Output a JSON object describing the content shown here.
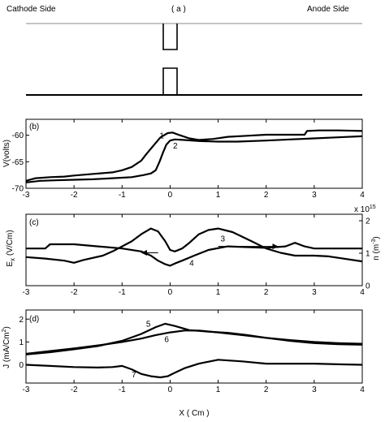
{
  "schematic": {
    "panel_label": "( a )",
    "left_label": "Cathode Side",
    "right_label": "Anode Side"
  },
  "xaxis_label": "X ( Cm )",
  "chart_data": [
    {
      "type": "line",
      "panel_label": "(b)",
      "ylabel": "V(volts)",
      "xlim": [
        -3,
        4
      ],
      "ylim": [
        -70,
        -57
      ],
      "xticks": [
        "-3",
        "-2",
        "-1",
        "0",
        "1",
        "2",
        "3",
        "4"
      ],
      "yticks": [
        -60,
        -65,
        -70
      ],
      "yticklabels": [
        "-60",
        "-65",
        "-70"
      ],
      "annotations": [
        {
          "text": "1",
          "x": -0.22,
          "y": -60.6
        },
        {
          "text": "2",
          "x": 0.06,
          "y": -62.5
        }
      ],
      "series": [
        {
          "label": "1",
          "x": [
            -3,
            -2.8,
            -2.5,
            -2.2,
            -2,
            -1.6,
            -1.2,
            -1,
            -0.8,
            -0.6,
            -0.5,
            -0.35,
            -0.2,
            -0.05,
            0.05,
            0.2,
            0.4,
            0.6,
            0.9,
            1.2,
            1.6,
            2,
            2.4,
            2.8,
            2.85,
            3.1,
            3.5,
            4
          ],
          "y": [
            -68.6,
            -68.1,
            -67.9,
            -67.8,
            -67.6,
            -67.3,
            -67.0,
            -66.6,
            -66.0,
            -64.8,
            -63.6,
            -62.0,
            -60.4,
            -59.6,
            -59.5,
            -60.0,
            -60.6,
            -60.9,
            -60.7,
            -60.3,
            -60.1,
            -59.9,
            -59.9,
            -59.9,
            -59.2,
            -59.1,
            -59.1,
            -59.2
          ]
        },
        {
          "label": "2",
          "x": [
            -3,
            -2.7,
            -2.4,
            -2,
            -1.6,
            -1.2,
            -0.8,
            -0.55,
            -0.4,
            -0.3,
            -0.22,
            -0.15,
            -0.08,
            0,
            0.1,
            0.3,
            0.6,
            1,
            1.4,
            2,
            2.5,
            3,
            3.5,
            4
          ],
          "y": [
            -68.9,
            -68.6,
            -68.5,
            -68.4,
            -68.3,
            -68.1,
            -67.9,
            -67.5,
            -67.2,
            -66.6,
            -65.0,
            -63.3,
            -61.8,
            -61.0,
            -60.8,
            -60.9,
            -61.1,
            -61.2,
            -61.2,
            -61.0,
            -60.8,
            -60.6,
            -60.4,
            -60.2
          ]
        }
      ]
    },
    {
      "type": "line",
      "panel_label": "(c)",
      "ylabel": "E_x (V/Cm)",
      "ylabel_main": "E",
      "ylabel_sub": "x",
      "ylabel_rest": "(V/Cm)",
      "y2label": "n (m⁻³)",
      "y2label_main": "n (m",
      "y2label_sup": "-3",
      "y2label_end": ")",
      "y2_multiplier_base": "x 10",
      "y2_multiplier_exp": "15",
      "xlim": [
        -3,
        4
      ],
      "ylim": [
        0,
        1
      ],
      "y2lim": [
        0,
        2.2
      ],
      "xticks": [
        "-3",
        "-2",
        "-1",
        "0",
        "1",
        "2",
        "3",
        "4"
      ],
      "y2ticks": [
        0,
        1,
        2
      ],
      "y2ticklabels": [
        "0",
        "1",
        "2"
      ],
      "annotations": [
        {
          "text": "3",
          "x": 1.05,
          "y": 0.62
        },
        {
          "text": "4",
          "x": 0.4,
          "y": 0.28
        }
      ],
      "arrows": [
        {
          "from_x": 1.0,
          "to_x": 2.25,
          "y": 0.55
        },
        {
          "from_x": -0.25,
          "to_x": -0.6,
          "y": 0.46
        }
      ],
      "series": [
        {
          "label": "3",
          "x": [
            -3,
            -2.6,
            -2.5,
            -2.3,
            -2,
            -1.5,
            -1,
            -0.6,
            -0.4,
            -0.25,
            -0.1,
            0,
            0.1,
            0.25,
            0.5,
            0.8,
            1.2,
            1.6,
            2,
            2.4,
            2.6,
            2.8,
            3,
            3.3,
            3.6,
            4
          ],
          "y": [
            0.52,
            0.52,
            0.58,
            0.58,
            0.58,
            0.55,
            0.52,
            0.48,
            0.42,
            0.35,
            0.3,
            0.28,
            0.31,
            0.35,
            0.42,
            0.5,
            0.55,
            0.54,
            0.53,
            0.55,
            0.6,
            0.55,
            0.52,
            0.52,
            0.52,
            0.52
          ]
        },
        {
          "label": "4",
          "x": [
            -3,
            -2.6,
            -2.2,
            -2,
            -1.8,
            -1.4,
            -1.2,
            -1,
            -0.8,
            -0.6,
            -0.4,
            -0.25,
            -0.1,
            0,
            0.1,
            0.25,
            0.4,
            0.6,
            0.8,
            1.0,
            1.3,
            1.7,
            2,
            2.3,
            2.6,
            3,
            3.3,
            3.6,
            4
          ],
          "y": [
            0.4,
            0.38,
            0.35,
            0.32,
            0.36,
            0.42,
            0.48,
            0.55,
            0.62,
            0.72,
            0.8,
            0.76,
            0.62,
            0.5,
            0.48,
            0.52,
            0.6,
            0.72,
            0.78,
            0.8,
            0.75,
            0.62,
            0.52,
            0.46,
            0.42,
            0.42,
            0.41,
            0.38,
            0.34
          ]
        }
      ]
    },
    {
      "type": "line",
      "panel_label": "(d)",
      "ylabel": "J (mA/Cm²)",
      "ylabel_main": "J (mA/Cm",
      "ylabel_sup": "2",
      "ylabel_end": ")",
      "xlim": [
        -3,
        4
      ],
      "ylim": [
        -0.8,
        2.4
      ],
      "xticks": [
        "-3",
        "-2",
        "-1",
        "0",
        "1",
        "2",
        "3",
        "4"
      ],
      "yticks": [
        2,
        1,
        0
      ],
      "yticklabels": [
        "2",
        "1",
        "0"
      ],
      "annotations": [
        {
          "text": "5",
          "x": -0.5,
          "y": 1.68
        },
        {
          "text": "6",
          "x": -0.12,
          "y": 1.0
        },
        {
          "text": "7",
          "x": -0.8,
          "y": -0.55
        }
      ],
      "series": [
        {
          "label": "5",
          "x": [
            -3,
            -2.5,
            -2,
            -1.5,
            -1,
            -0.6,
            -0.3,
            -0.1,
            0.1,
            0.4,
            0.8,
            1.2,
            1.6,
            2,
            2.5,
            3,
            3.5,
            4
          ],
          "y": [
            0.45,
            0.55,
            0.68,
            0.82,
            1.05,
            1.35,
            1.65,
            1.8,
            1.7,
            1.52,
            1.45,
            1.4,
            1.3,
            1.18,
            1.05,
            0.95,
            0.9,
            0.88
          ]
        },
        {
          "label": "6",
          "x": [
            -3,
            -2.5,
            -2,
            -1.5,
            -1,
            -0.6,
            -0.3,
            0,
            0.3,
            0.6,
            1,
            1.5,
            2,
            2.5,
            3,
            3.5,
            4
          ],
          "y": [
            0.48,
            0.6,
            0.72,
            0.85,
            1.0,
            1.15,
            1.3,
            1.42,
            1.5,
            1.5,
            1.42,
            1.3,
            1.18,
            1.08,
            1.0,
            0.95,
            0.92
          ]
        },
        {
          "label": "7",
          "x": [
            -3,
            -2.5,
            -2,
            -1.5,
            -1.2,
            -1,
            -0.8,
            -0.6,
            -0.4,
            -0.2,
            -0.05,
            0.1,
            0.3,
            0.6,
            1,
            1.5,
            2,
            2.5,
            3,
            3.5,
            4
          ],
          "y": [
            0.0,
            -0.05,
            -0.1,
            -0.12,
            -0.1,
            -0.05,
            -0.2,
            -0.4,
            -0.5,
            -0.55,
            -0.5,
            -0.35,
            -0.15,
            0.05,
            0.22,
            0.15,
            0.05,
            0.05,
            0.05,
            0.02,
            0.0
          ]
        }
      ]
    }
  ]
}
